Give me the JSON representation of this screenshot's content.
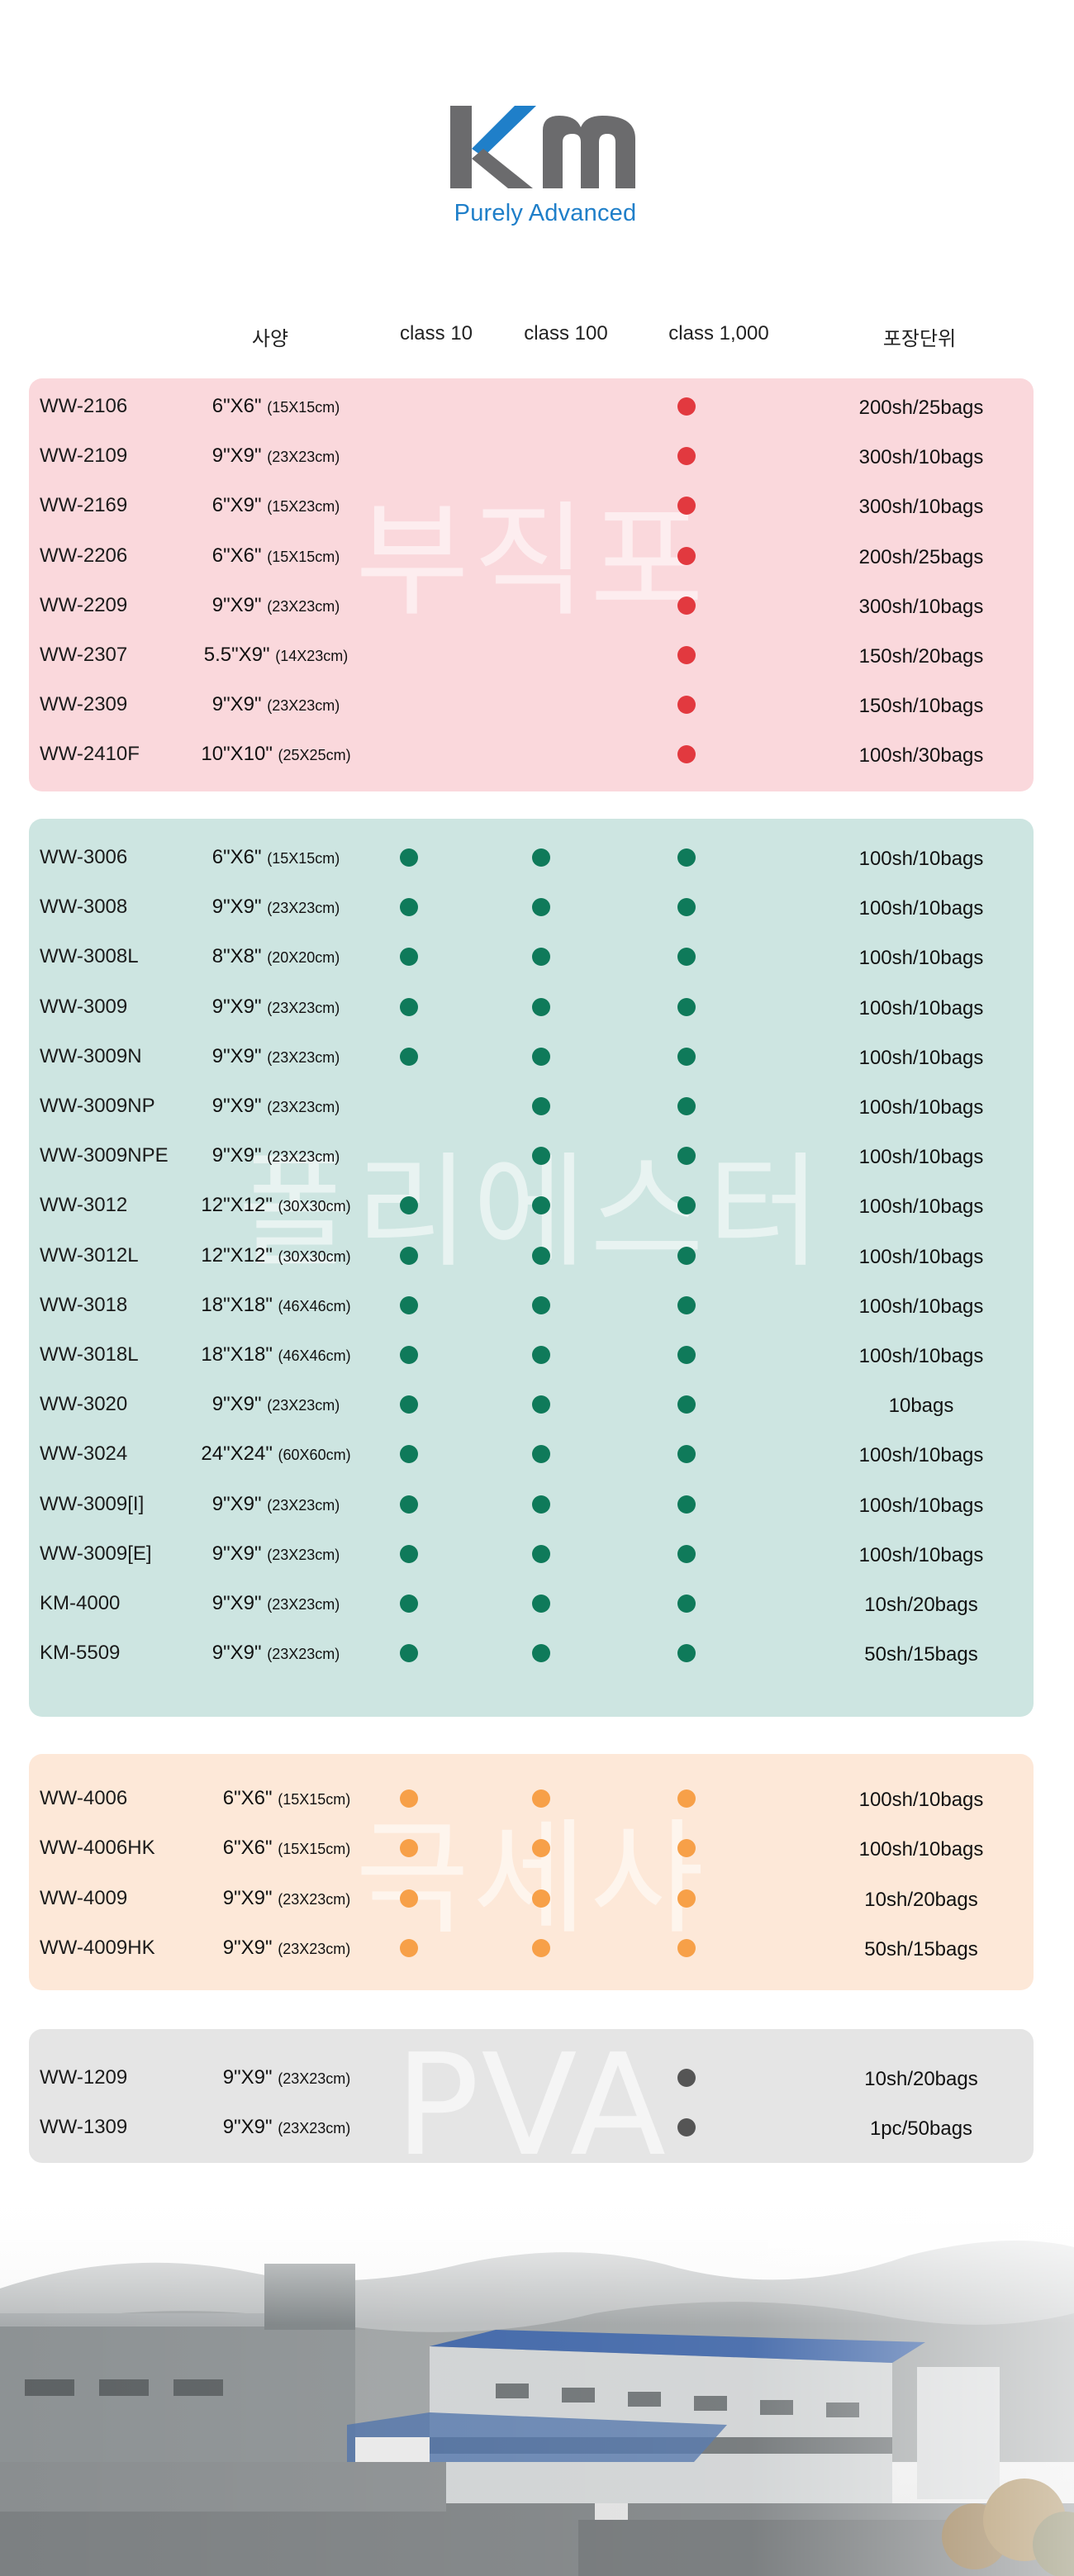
{
  "brand": {
    "logo_text": "Km",
    "tagline": "Purely Advanced"
  },
  "columns": {
    "spec": "사양",
    "class10": "class 10",
    "class100": "class 100",
    "class1000": "class 1,000",
    "packing": "포장단위"
  },
  "colors": {
    "pink_dot": "#e2393f",
    "green_dot": "#0f7a5a",
    "orange_dot": "#f7a048",
    "gray_dot": "#555555"
  },
  "groups": [
    {
      "id": "nonwoven",
      "watermark": "부직포",
      "dot_color": "#e2393f",
      "rows": [
        {
          "code": "WW-2106",
          "size": "6\"X6\"",
          "size_cm": "(15X15cm)",
          "class10": false,
          "class100": false,
          "class1000": true,
          "packing": "200sh/25bags"
        },
        {
          "code": "WW-2109",
          "size": "9\"X9\"",
          "size_cm": "(23X23cm)",
          "class10": false,
          "class100": false,
          "class1000": true,
          "packing": "300sh/10bags"
        },
        {
          "code": "WW-2169",
          "size": "6\"X9\"",
          "size_cm": "(15X23cm)",
          "class10": false,
          "class100": false,
          "class1000": true,
          "packing": "300sh/10bags"
        },
        {
          "code": "WW-2206",
          "size": "6\"X6\"",
          "size_cm": "(15X15cm)",
          "class10": false,
          "class100": false,
          "class1000": true,
          "packing": "200sh/25bags"
        },
        {
          "code": "WW-2209",
          "size": "9\"X9\"",
          "size_cm": "(23X23cm)",
          "class10": false,
          "class100": false,
          "class1000": true,
          "packing": "300sh/10bags"
        },
        {
          "code": "WW-2307",
          "size": "5.5\"X9\"",
          "size_cm": "(14X23cm)",
          "class10": false,
          "class100": false,
          "class1000": true,
          "packing": "150sh/20bags"
        },
        {
          "code": "WW-2309",
          "size": "9\"X9\"",
          "size_cm": "(23X23cm)",
          "class10": false,
          "class100": false,
          "class1000": true,
          "packing": "150sh/10bags"
        },
        {
          "code": "WW-2410F",
          "size": "10\"X10\"",
          "size_cm": "(25X25cm)",
          "class10": false,
          "class100": false,
          "class1000": true,
          "packing": "100sh/30bags"
        }
      ]
    },
    {
      "id": "polyester",
      "watermark": "폴리에스터",
      "dot_color": "#0f7a5a",
      "rows": [
        {
          "code": "WW-3006",
          "size": "6\"X6\"",
          "size_cm": "(15X15cm)",
          "class10": true,
          "class100": true,
          "class1000": true,
          "packing": "100sh/10bags"
        },
        {
          "code": "WW-3008",
          "size": "9\"X9\"",
          "size_cm": "(23X23cm)",
          "class10": true,
          "class100": true,
          "class1000": true,
          "packing": "100sh/10bags"
        },
        {
          "code": "WW-3008L",
          "size": "8\"X8\"",
          "size_cm": "(20X20cm)",
          "class10": true,
          "class100": true,
          "class1000": true,
          "packing": "100sh/10bags"
        },
        {
          "code": "WW-3009",
          "size": "9\"X9\"",
          "size_cm": "(23X23cm)",
          "class10": true,
          "class100": true,
          "class1000": true,
          "packing": "100sh/10bags"
        },
        {
          "code": "WW-3009N",
          "size": "9\"X9\"",
          "size_cm": "(23X23cm)",
          "class10": true,
          "class100": true,
          "class1000": true,
          "packing": "100sh/10bags"
        },
        {
          "code": "WW-3009NP",
          "size": "9\"X9\"",
          "size_cm": "(23X23cm)",
          "class10": false,
          "class100": true,
          "class1000": true,
          "packing": "100sh/10bags"
        },
        {
          "code": "WW-3009NPE",
          "size": "9\"X9\"",
          "size_cm": "(23X23cm)",
          "class10": false,
          "class100": true,
          "class1000": true,
          "packing": "100sh/10bags"
        },
        {
          "code": "WW-3012",
          "size": "12\"X12\"",
          "size_cm": "(30X30cm)",
          "class10": true,
          "class100": true,
          "class1000": true,
          "packing": "100sh/10bags"
        },
        {
          "code": "WW-3012L",
          "size": "12\"X12\"",
          "size_cm": "(30X30cm)",
          "class10": true,
          "class100": true,
          "class1000": true,
          "packing": "100sh/10bags"
        },
        {
          "code": "WW-3018",
          "size": "18\"X18\"",
          "size_cm": "(46X46cm)",
          "class10": true,
          "class100": true,
          "class1000": true,
          "packing": "100sh/10bags"
        },
        {
          "code": "WW-3018L",
          "size": "18\"X18\"",
          "size_cm": "(46X46cm)",
          "class10": true,
          "class100": true,
          "class1000": true,
          "packing": "100sh/10bags"
        },
        {
          "code": "WW-3020",
          "size": "9\"X9\"",
          "size_cm": "(23X23cm)",
          "class10": true,
          "class100": true,
          "class1000": true,
          "packing": "10bags"
        },
        {
          "code": "WW-3024",
          "size": "24\"X24\"",
          "size_cm": "(60X60cm)",
          "class10": true,
          "class100": true,
          "class1000": true,
          "packing": "100sh/10bags"
        },
        {
          "code": "WW-3009[I]",
          "size": "9\"X9\"",
          "size_cm": "(23X23cm)",
          "class10": true,
          "class100": true,
          "class1000": true,
          "packing": "100sh/10bags"
        },
        {
          "code": "WW-3009[E]",
          "size": "9\"X9\"",
          "size_cm": "(23X23cm)",
          "class10": true,
          "class100": true,
          "class1000": true,
          "packing": "100sh/10bags"
        },
        {
          "code": "KM-4000",
          "size": "9\"X9\"",
          "size_cm": "(23X23cm)",
          "class10": true,
          "class100": true,
          "class1000": true,
          "packing": "10sh/20bags"
        },
        {
          "code": "KM-5509",
          "size": "9\"X9\"",
          "size_cm": "(23X23cm)",
          "class10": true,
          "class100": true,
          "class1000": true,
          "packing": "50sh/15bags"
        }
      ]
    },
    {
      "id": "microfiber",
      "watermark": "극세사",
      "dot_color": "#f7a048",
      "rows": [
        {
          "code": "WW-4006",
          "size": "6\"X6\"",
          "size_cm": "(15X15cm)",
          "class10": true,
          "class100": true,
          "class1000": true,
          "packing": "100sh/10bags"
        },
        {
          "code": "WW-4006HK",
          "size": "6\"X6\"",
          "size_cm": "(15X15cm)",
          "class10": true,
          "class100": true,
          "class1000": true,
          "packing": "100sh/10bags"
        },
        {
          "code": "WW-4009",
          "size": "9\"X9\"",
          "size_cm": "(23X23cm)",
          "class10": true,
          "class100": true,
          "class1000": true,
          "packing": "10sh/20bags"
        },
        {
          "code": "WW-4009HK",
          "size": "9\"X9\"",
          "size_cm": "(23X23cm)",
          "class10": true,
          "class100": true,
          "class1000": true,
          "packing": "50sh/15bags"
        }
      ]
    },
    {
      "id": "pva",
      "watermark": "PVA",
      "dot_color": "#555555",
      "rows": [
        {
          "code": "WW-1209",
          "size": "9\"X9\"",
          "size_cm": "(23X23cm)",
          "class10": false,
          "class100": false,
          "class1000": true,
          "packing": "10sh/20bags"
        },
        {
          "code": "WW-1309",
          "size": "9\"X9\"",
          "size_cm": "(23X23cm)",
          "class10": false,
          "class100": false,
          "class1000": true,
          "packing": "1pc/50bags"
        }
      ]
    }
  ]
}
